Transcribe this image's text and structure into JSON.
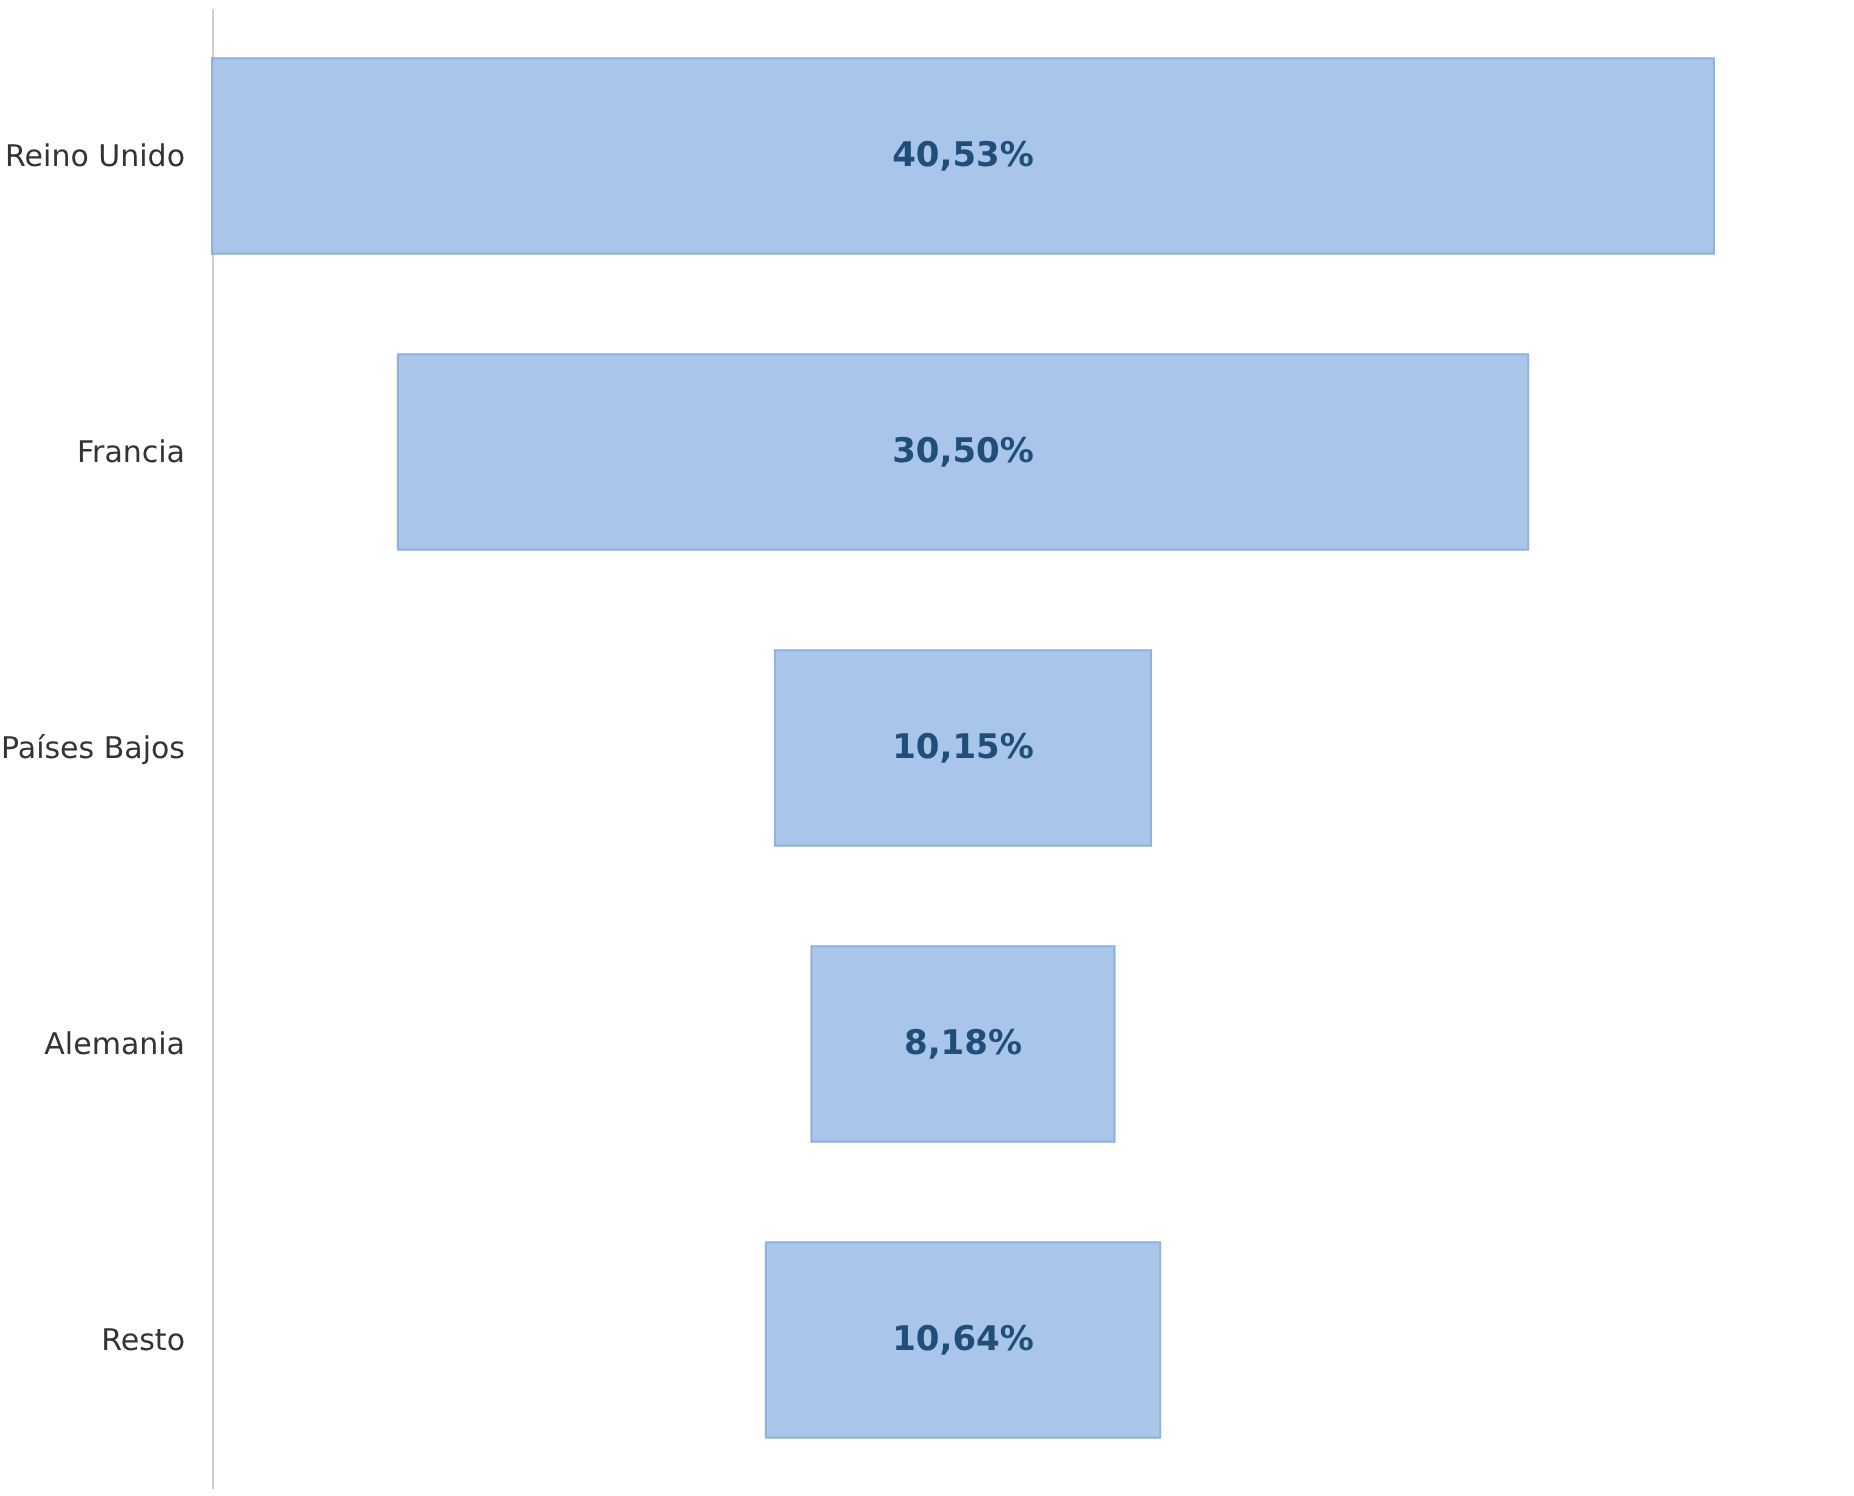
{
  "chart_data": {
    "type": "other",
    "categories": [
      "Reino Unido",
      "Francia",
      "Países Bajos",
      "Alemania",
      "Resto"
    ],
    "values": [
      40.53,
      30.5,
      10.15,
      8.18,
      10.64
    ],
    "value_labels": [
      "40,53%",
      "30,50%",
      "10,15%",
      "8,18%",
      "10,64%"
    ],
    "color": "#a9c5ea"
  }
}
